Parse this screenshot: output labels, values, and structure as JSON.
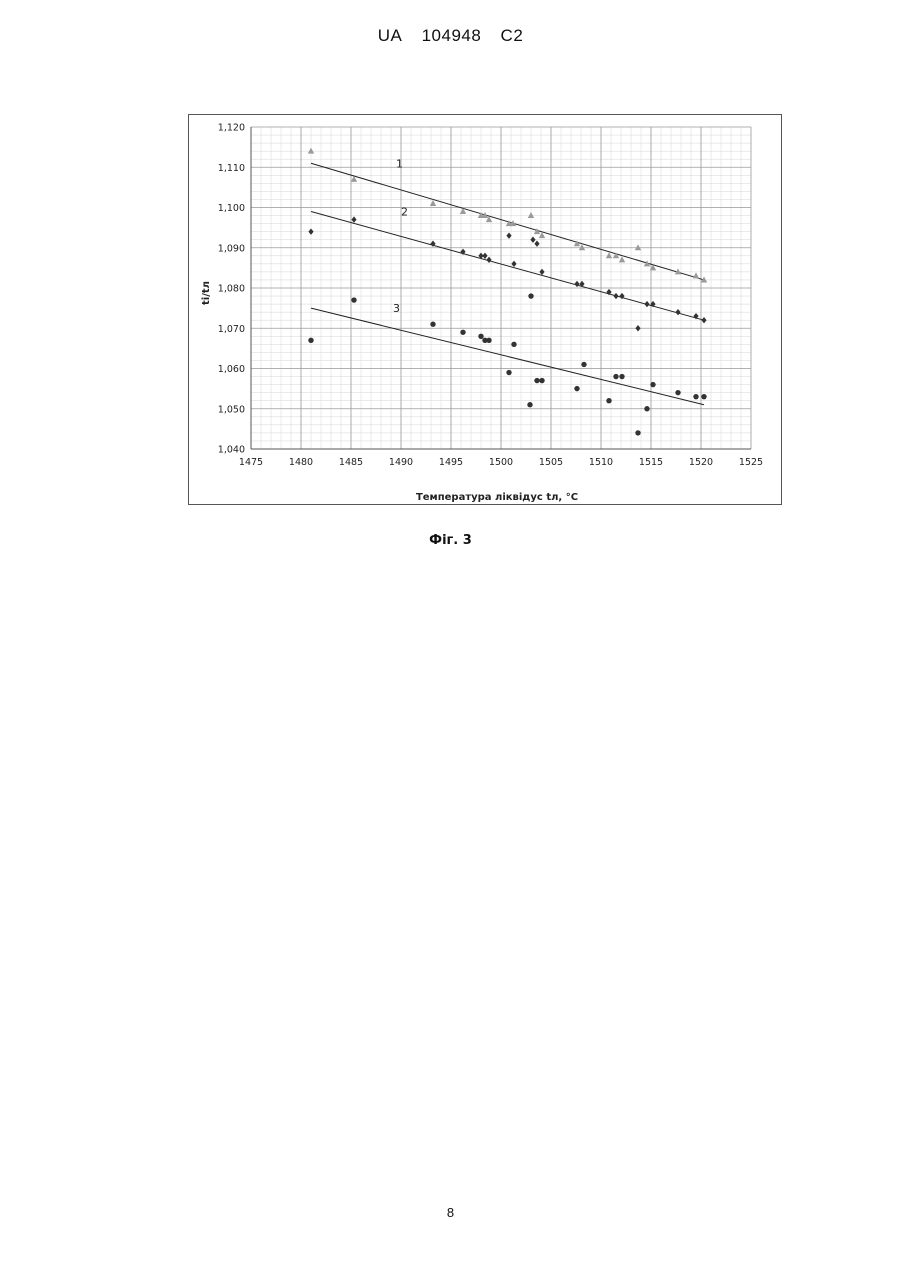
{
  "header": {
    "country": "UA",
    "number": "104948",
    "kind": "C2"
  },
  "figure_caption": "Фіг. 3",
  "page_number": "8",
  "chart_data": {
    "type": "scatter",
    "xlabel": "Температура ліквідус tл, °C",
    "ylabel": "ti/tл",
    "xlim": [
      1475,
      1525
    ],
    "ylim": [
      1.04,
      1.12
    ],
    "x_ticks": [
      "1475",
      "1480",
      "1485",
      "1490",
      "1495",
      "1500",
      "1505",
      "1510",
      "1515",
      "1520",
      "1525"
    ],
    "y_ticks": [
      "1,040",
      "1,050",
      "1,060",
      "1,070",
      "1,080",
      "1,090",
      "1,100",
      "1,110",
      "1,120"
    ],
    "grid": true,
    "series": [
      {
        "name": "1",
        "marker": "triangle",
        "color": "#9a9a9a",
        "trend": [
          [
            1481,
            1.111
          ],
          [
            1520.3,
            1.082
          ]
        ],
        "points": [
          [
            1481,
            1.114
          ],
          [
            1485.3,
            1.107
          ],
          [
            1493.2,
            1.101
          ],
          [
            1496.2,
            1.099
          ],
          [
            1498,
            1.098
          ],
          [
            1498.4,
            1.098
          ],
          [
            1498.8,
            1.097
          ],
          [
            1500.8,
            1.096
          ],
          [
            1501.2,
            1.096
          ],
          [
            1503,
            1.098
          ],
          [
            1503.6,
            1.094
          ],
          [
            1504.1,
            1.093
          ],
          [
            1507.6,
            1.091
          ],
          [
            1508.1,
            1.09
          ],
          [
            1510.8,
            1.088
          ],
          [
            1511.5,
            1.088
          ],
          [
            1512.1,
            1.087
          ],
          [
            1513.7,
            1.09
          ],
          [
            1514.6,
            1.086
          ],
          [
            1515.2,
            1.085
          ],
          [
            1517.7,
            1.084
          ],
          [
            1519.5,
            1.083
          ],
          [
            1520.3,
            1.082
          ]
        ]
      },
      {
        "name": "2",
        "marker": "diamond",
        "color": "#333333",
        "trend": [
          [
            1481,
            1.099
          ],
          [
            1520.3,
            1.072
          ]
        ],
        "points": [
          [
            1481,
            1.094
          ],
          [
            1485.3,
            1.097
          ],
          [
            1493.2,
            1.091
          ],
          [
            1496.2,
            1.089
          ],
          [
            1498,
            1.088
          ],
          [
            1498.4,
            1.088
          ],
          [
            1498.8,
            1.087
          ],
          [
            1500.8,
            1.093
          ],
          [
            1501.3,
            1.086
          ],
          [
            1503.2,
            1.092
          ],
          [
            1503.6,
            1.091
          ],
          [
            1504.1,
            1.084
          ],
          [
            1507.6,
            1.081
          ],
          [
            1508.1,
            1.081
          ],
          [
            1510.8,
            1.079
          ],
          [
            1511.5,
            1.078
          ],
          [
            1512.1,
            1.078
          ],
          [
            1513.7,
            1.07
          ],
          [
            1514.6,
            1.076
          ],
          [
            1515.2,
            1.076
          ],
          [
            1517.7,
            1.074
          ],
          [
            1519.5,
            1.073
          ],
          [
            1520.3,
            1.072
          ]
        ]
      },
      {
        "name": "3",
        "marker": "circle",
        "color": "#333333",
        "trend": [
          [
            1481,
            1.075
          ],
          [
            1520.3,
            1.051
          ]
        ],
        "points": [
          [
            1481,
            1.067
          ],
          [
            1485.3,
            1.077
          ],
          [
            1493.2,
            1.071
          ],
          [
            1496.2,
            1.069
          ],
          [
            1498,
            1.068
          ],
          [
            1498.4,
            1.067
          ],
          [
            1498.8,
            1.067
          ],
          [
            1500.8,
            1.059
          ],
          [
            1501.3,
            1.066
          ],
          [
            1502.9,
            1.051
          ],
          [
            1503,
            1.078
          ],
          [
            1503.6,
            1.057
          ],
          [
            1504.1,
            1.057
          ],
          [
            1507.6,
            1.055
          ],
          [
            1508.3,
            1.061
          ],
          [
            1510.8,
            1.052
          ],
          [
            1511.5,
            1.058
          ],
          [
            1512.1,
            1.058
          ],
          [
            1513.7,
            1.044
          ],
          [
            1514.6,
            1.05
          ],
          [
            1515.2,
            1.056
          ],
          [
            1517.7,
            1.054
          ],
          [
            1519.5,
            1.053
          ],
          [
            1520.3,
            1.053
          ]
        ]
      }
    ]
  }
}
